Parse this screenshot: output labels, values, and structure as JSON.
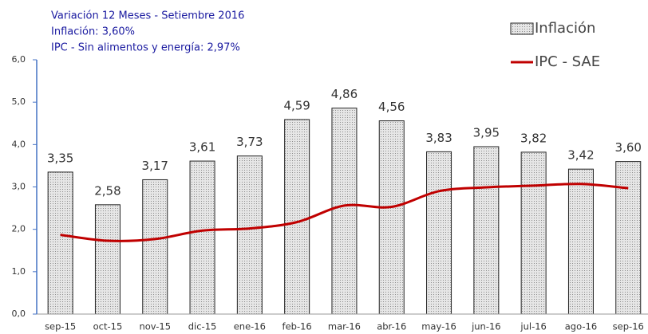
{
  "chart_data": {
    "type": "bar",
    "annotations": [
      "Variación 12 Meses - Setiembre 2016",
      "Inflación: 3,60%",
      "IPC - Sin alimentos y energía: 2,97%"
    ],
    "categories": [
      "sep-15",
      "oct-15",
      "nov-15",
      "dic-15",
      "ene-16",
      "feb-16",
      "mar-16",
      "abr-16",
      "may-16",
      "jun-16",
      "jul-16",
      "ago-16",
      "sep-16"
    ],
    "series": [
      {
        "name": "Inflación",
        "type": "bar",
        "color": "#d4d4d4",
        "values": [
          3.35,
          2.58,
          3.17,
          3.61,
          3.73,
          4.59,
          4.86,
          4.56,
          3.83,
          3.95,
          3.82,
          3.42,
          3.6
        ],
        "value_labels": [
          "3,35",
          "2,58",
          "3,17",
          "3,61",
          "3,73",
          "4,59",
          "4,86",
          "4,56",
          "3,83",
          "3,95",
          "3,82",
          "3,42",
          "3,60"
        ]
      },
      {
        "name": "IPC - SAE",
        "type": "line",
        "color": "#c00000",
        "values": [
          1.87,
          1.73,
          1.77,
          1.97,
          2.02,
          2.17,
          2.56,
          2.53,
          2.9,
          2.99,
          3.03,
          3.07,
          2.97
        ]
      }
    ],
    "ylim": [
      0,
      6
    ],
    "yticks": [
      {
        "value": 0,
        "label": "0,0"
      },
      {
        "value": 1,
        "label": "1,0"
      },
      {
        "value": 2,
        "label": "2,0"
      },
      {
        "value": 3,
        "label": "3,0"
      },
      {
        "value": 4,
        "label": "4,0"
      },
      {
        "value": 5,
        "label": "5,0"
      },
      {
        "value": 6,
        "label": "6,0"
      }
    ],
    "legend": "top-right"
  }
}
